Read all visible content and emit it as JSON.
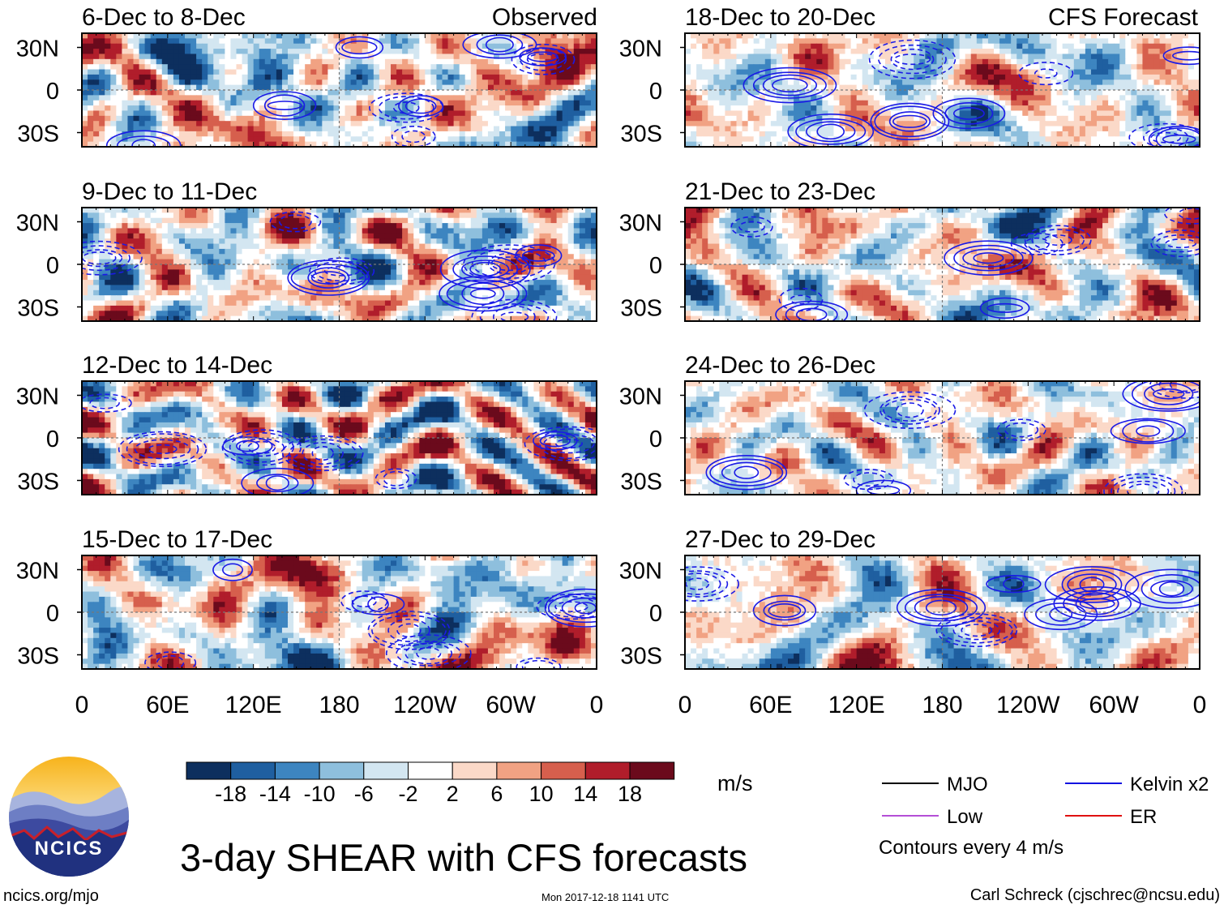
{
  "title": "3-day SHEAR with CFS forecasts",
  "site": "ncics.org/mjo",
  "timestamp": "Mon 2017-12-18 1141 UTC",
  "credit": "Carl Schreck (cjschrec@ncsu.edu)",
  "logo_text": "NCICS",
  "column_labels": [
    "Observed",
    "CFS Forecast"
  ],
  "units": "m/s",
  "contour_note": "Contours every 4 m/s",
  "legend": [
    {
      "label": "MJO",
      "color": "#000000"
    },
    {
      "label": "Kelvin x2",
      "color": "#1010e0"
    },
    {
      "label": "Low",
      "color": "#b44fd6"
    },
    {
      "label": "ER",
      "color": "#e01010"
    }
  ],
  "colorbar": {
    "colors": [
      "#0d2f5e",
      "#1f5fa0",
      "#3d85c0",
      "#8ebfdd",
      "#d3e6f1",
      "#ffffff",
      "#fbd9c8",
      "#f1a283",
      "#d65f4d",
      "#b01d2b",
      "#6b0a1c"
    ],
    "tick_labels": [
      "-18",
      "-14",
      "-10",
      "-6",
      "-2",
      "2",
      "6",
      "10",
      "14",
      "18"
    ]
  },
  "chart_data": {
    "type": "heatmap",
    "variable": "Vertical wind shear (m/s) with wave-filtered contours",
    "x_tick_labels": [
      "0",
      "60E",
      "120E",
      "180",
      "120W",
      "60W",
      "0"
    ],
    "y_tick_labels": [
      "30N",
      "0",
      "30S"
    ],
    "x_range_deg_east": [
      0,
      360
    ],
    "y_range_deg": [
      -40,
      40
    ],
    "panels": [
      {
        "label": "6-Dec to 8-Dec",
        "column": "Observed",
        "row": 0,
        "seed": 11
      },
      {
        "label": "9-Dec to 11-Dec",
        "column": "Observed",
        "row": 1,
        "seed": 23
      },
      {
        "label": "12-Dec to 14-Dec",
        "column": "Observed",
        "row": 2,
        "seed": 37
      },
      {
        "label": "15-Dec to 17-Dec",
        "column": "Observed",
        "row": 3,
        "seed": 41
      },
      {
        "label": "18-Dec to 20-Dec",
        "column": "CFS Forecast",
        "row": 0,
        "seed": 53
      },
      {
        "label": "21-Dec to 23-Dec",
        "column": "CFS Forecast",
        "row": 1,
        "seed": 67
      },
      {
        "label": "24-Dec to 26-Dec",
        "column": "CFS Forecast",
        "row": 2,
        "seed": 79
      },
      {
        "label": "27-Dec to 29-Dec",
        "column": "CFS Forecast",
        "row": 3,
        "seed": 97
      }
    ]
  }
}
